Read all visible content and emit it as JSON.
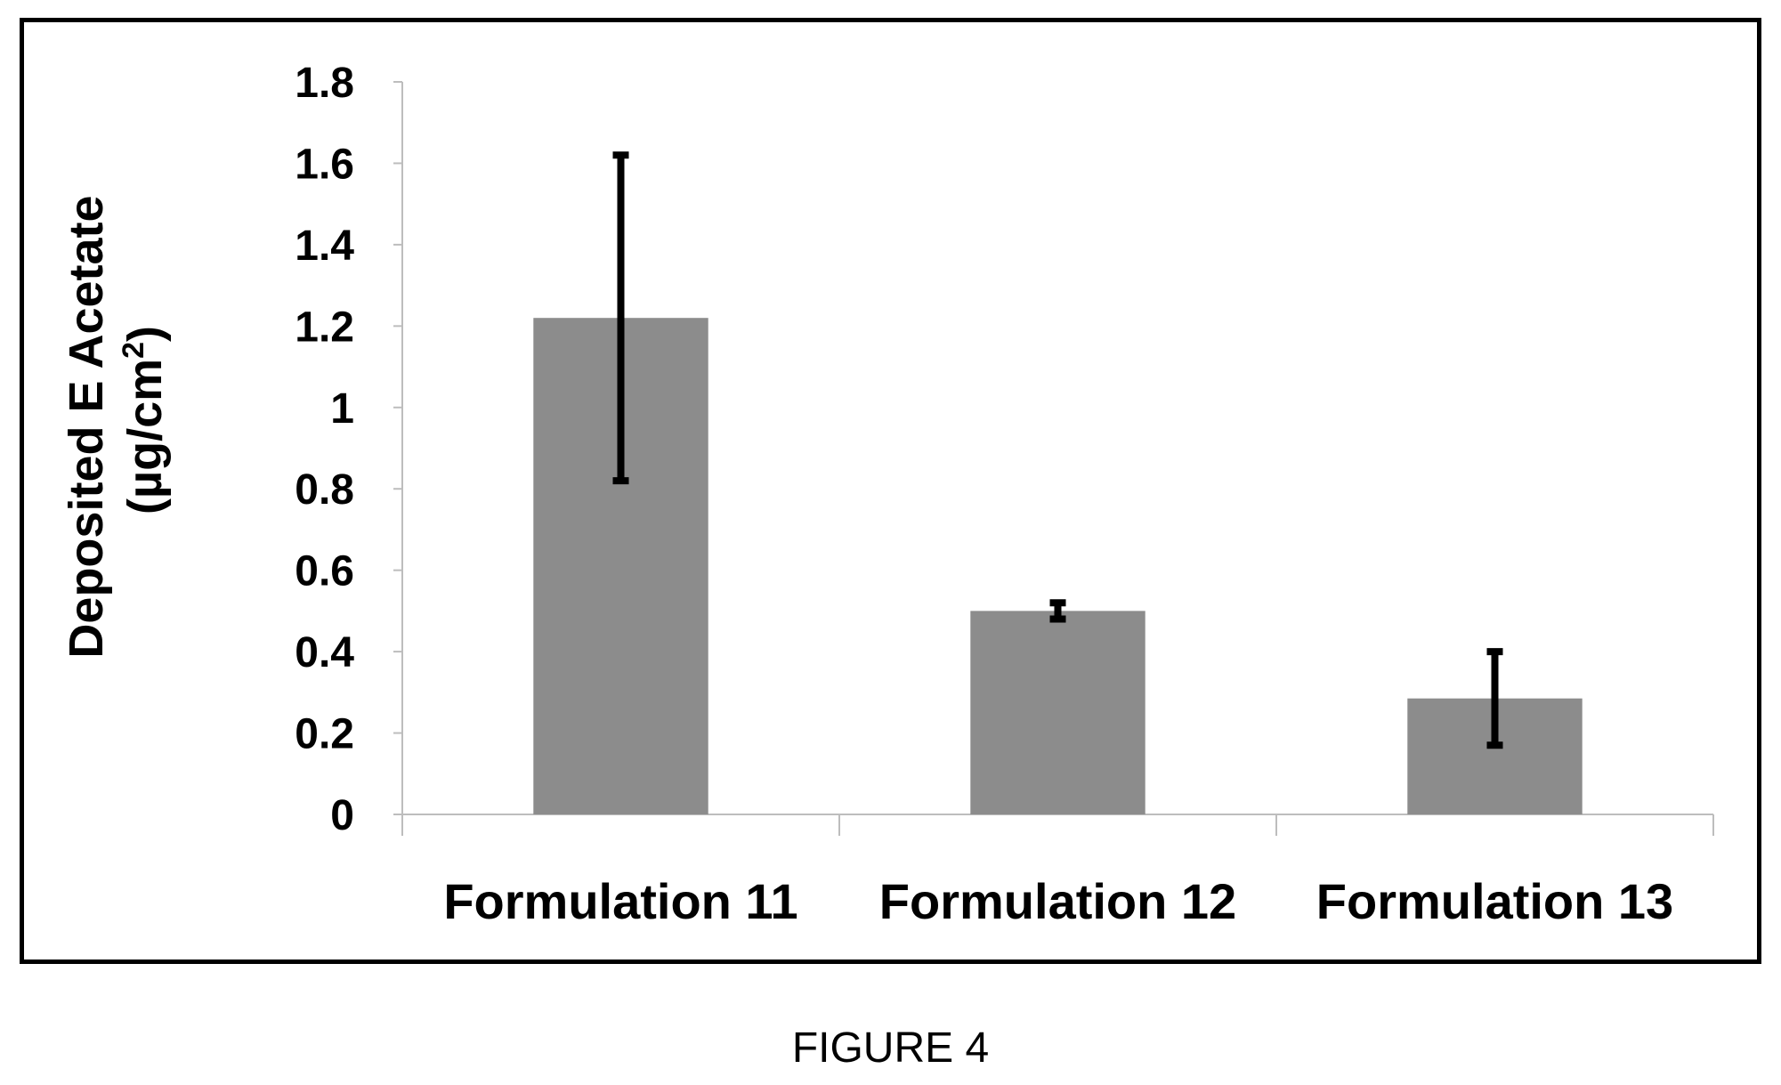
{
  "figure_caption": "FIGURE 4",
  "colors": {
    "bar": "#8c8c8c",
    "error_bar": "#000000",
    "axis": "#bdbdbd",
    "frame": "#000000"
  },
  "chart_data": {
    "type": "bar",
    "title": "",
    "xlabel": "",
    "ylabel_line1": "Deposited E Acetate",
    "ylabel_line2_prefix": "(µg/cm",
    "ylabel_line2_sup": "2",
    "ylabel_line2_suffix": ")",
    "categories": [
      "Formulation 11",
      "Formulation 12",
      "Formulation 13"
    ],
    "values": [
      1.22,
      0.5,
      0.285
    ],
    "error_low": [
      0.82,
      0.48,
      0.17
    ],
    "error_high": [
      1.62,
      0.52,
      0.4
    ],
    "ylim": [
      0,
      1.8
    ],
    "yticks": [
      "0",
      "0.2",
      "0.4",
      "0.6",
      "0.8",
      "1",
      "1.2",
      "1.4",
      "1.6",
      "1.8"
    ],
    "grid": false,
    "legend": "none"
  }
}
